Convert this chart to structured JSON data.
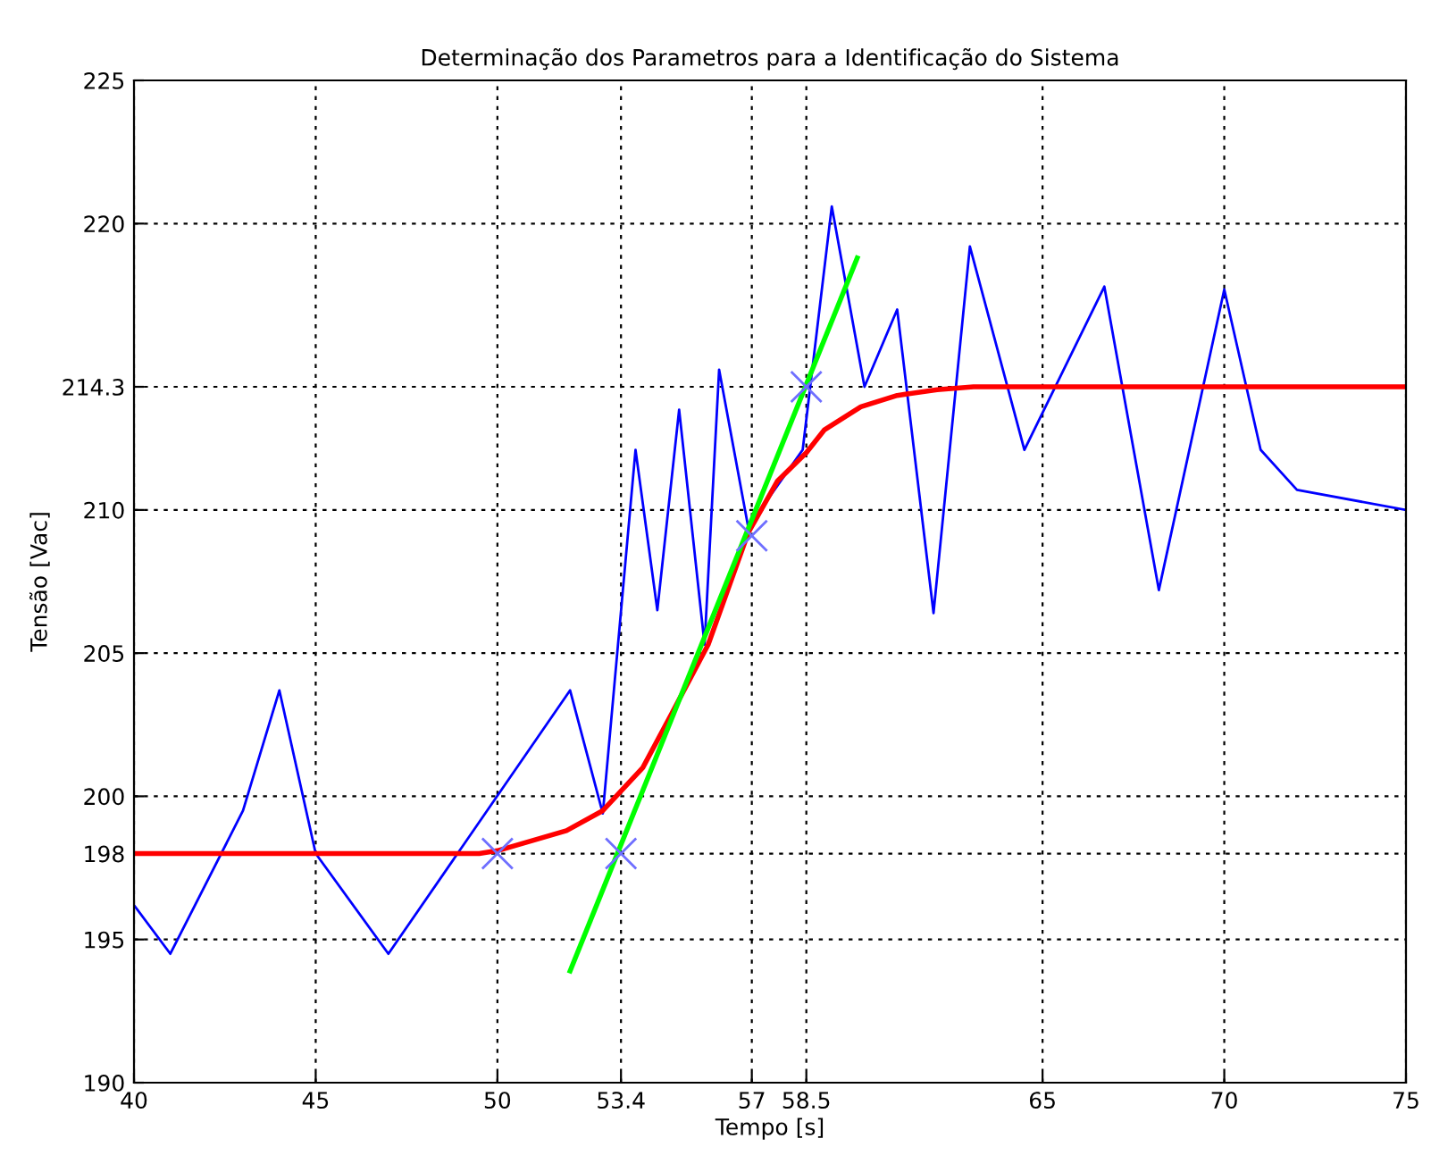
{
  "chart_data": {
    "type": "line",
    "title": "Determinação dos Parametros para a Identificação do Sistema",
    "xlabel": "Tempo [s]",
    "ylabel": "Tensão [Vac]",
    "xlim": [
      40,
      75
    ],
    "ylim": [
      190,
      225
    ],
    "xticks": [
      40,
      45,
      50,
      53.4,
      57,
      58.5,
      65,
      70,
      75
    ],
    "yticks": [
      190,
      195,
      198,
      200,
      205,
      210,
      214.3,
      220,
      225
    ],
    "grid": true,
    "line_style": "solid",
    "legend": false,
    "series": [
      {
        "color": "#0000ff",
        "x": [
          40,
          41,
          43,
          44,
          45,
          47,
          52,
          52.9,
          53.8,
          54.4,
          55,
          55.7,
          56.1,
          56.9,
          58.4,
          59.2,
          60.1,
          61,
          62,
          63,
          64.5,
          66.7,
          68.2,
          70,
          71,
          72,
          75
        ],
        "values": [
          196.2,
          194.5,
          199.5,
          203.7,
          198,
          194.5,
          203.7,
          199.4,
          212.1,
          206.5,
          213.5,
          205.3,
          214.9,
          209.4,
          212.1,
          220.6,
          214.3,
          217,
          206.4,
          219.2,
          212.1,
          217.8,
          207.2,
          217.7,
          212.1,
          210.7,
          210
        ]
      },
      {
        "color": "#ff0000",
        "x": [
          40,
          49.5,
          50,
          51.9,
          52.9,
          54,
          54.8,
          55.8,
          56.9,
          57.7,
          58.5,
          59,
          60,
          61,
          62.1,
          63.1,
          75
        ],
        "values": [
          198,
          198,
          198.1,
          198.8,
          199.5,
          201,
          202.9,
          205.3,
          209.2,
          211,
          212,
          212.8,
          213.6,
          214,
          214.2,
          214.3,
          214.3
        ]
      },
      {
        "color": "#00ff00",
        "x": [
          52,
          59.9
        ],
        "values": [
          193.9,
          218.8
        ]
      },
      {
        "type": "scatter",
        "marker": "cross",
        "color": "#6f6fff",
        "x": [
          50,
          53.4,
          57,
          58.5
        ],
        "values": [
          198,
          198,
          209.1,
          214.3
        ]
      }
    ]
  }
}
